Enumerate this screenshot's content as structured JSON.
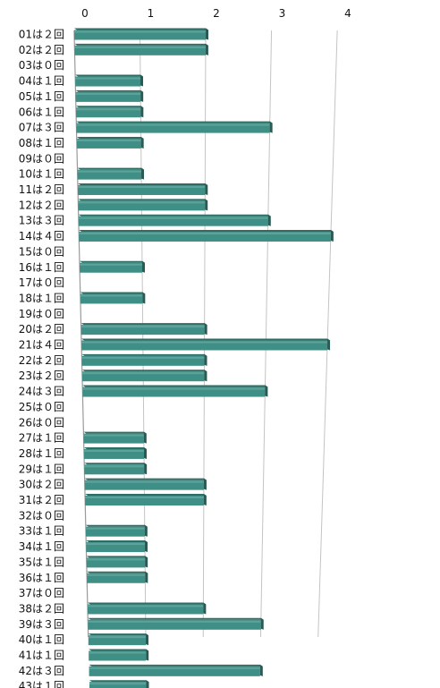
{
  "chart_data": {
    "type": "bar",
    "orientation": "horizontal",
    "title": "",
    "xlabel": "",
    "ylabel": "",
    "xlim": [
      0,
      4
    ],
    "x_ticks": [
      "0",
      "1",
      "2",
      "3",
      "4"
    ],
    "grid": true,
    "bar_color": "#3f8f86",
    "bar_top_color": "#2f6c64",
    "categories": [
      "01は２回",
      "02は２回",
      "03は０回",
      "04は１回",
      "05は１回",
      "06は１回",
      "07は３回",
      "08は１回",
      "09は０回",
      "10は１回",
      "11は２回",
      "12は２回",
      "13は３回",
      "14は４回",
      "15は０回",
      "16は１回",
      "17は０回",
      "18は１回",
      "19は０回",
      "20は２回",
      "21は４回",
      "22は２回",
      "23は２回",
      "24は３回",
      "25は０回",
      "26は０回",
      "27は１回",
      "28は１回",
      "29は１回",
      "30は２回",
      "31は２回",
      "32は０回",
      "33は１回",
      "34は１回",
      "35は１回",
      "36は１回",
      "37は０回",
      "38は２回",
      "39は３回",
      "40は１回",
      "41は１回",
      "42は３回",
      "43は１回"
    ],
    "values": [
      2,
      2,
      0,
      1,
      1,
      1,
      3,
      1,
      0,
      1,
      2,
      2,
      3,
      4,
      0,
      1,
      0,
      1,
      0,
      2,
      4,
      2,
      2,
      3,
      0,
      0,
      1,
      1,
      1,
      2,
      2,
      0,
      1,
      1,
      1,
      1,
      0,
      2,
      3,
      1,
      1,
      3,
      1
    ]
  }
}
